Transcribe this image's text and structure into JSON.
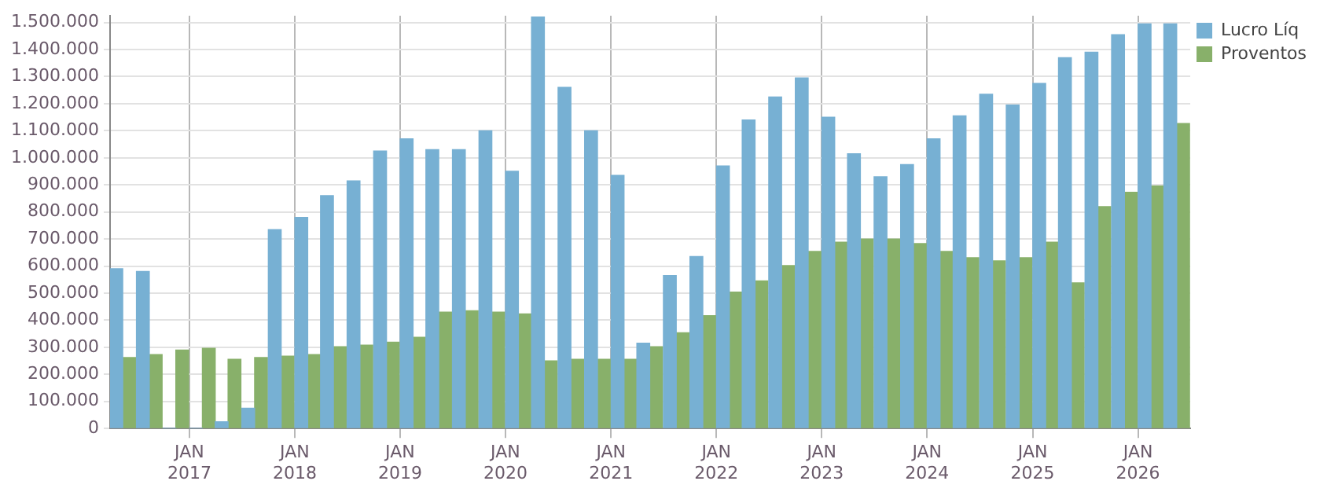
{
  "chart_data": {
    "type": "bar",
    "x": [
      "2016-05-15",
      "2016-08-15",
      "2016-11-15",
      "2017-02-15",
      "2017-05-15",
      "2017-08-15",
      "2017-11-15",
      "2018-02-15",
      "2018-05-15",
      "2018-08-15",
      "2018-11-15",
      "2019-02-15",
      "2019-05-15",
      "2019-08-15",
      "2019-11-15",
      "2020-02-15",
      "2020-05-15",
      "2020-08-15",
      "2020-11-15",
      "2021-02-15",
      "2021-05-15",
      "2021-08-15",
      "2021-11-15",
      "2022-02-15",
      "2022-05-15",
      "2022-08-15",
      "2022-11-15",
      "2023-02-15",
      "2023-05-15",
      "2023-08-15",
      "2023-11-15",
      "2024-02-15",
      "2024-05-15",
      "2024-08-15",
      "2024-11-15",
      "2025-02-15",
      "2025-05-15",
      "2025-08-15",
      "2025-11-15",
      "2026-02-15",
      "2026-05-15"
    ],
    "series": [
      {
        "name": "Lucro Líq",
        "color": "#77b0d3",
        "values": [
          590000,
          580000,
          0,
          0,
          25000,
          75000,
          735000,
          780000,
          860000,
          915000,
          1025000,
          1070000,
          1030000,
          1030000,
          1100000,
          950000,
          1520000,
          1260000,
          1100000,
          935000,
          315000,
          565000,
          635000,
          970000,
          1140000,
          1225000,
          1295000,
          1150000,
          1015000,
          930000,
          975000,
          1070000,
          1155000,
          1235000,
          1195000,
          1275000,
          1370000,
          1390000,
          1455000,
          1495000,
          1495000
        ]
      },
      {
        "name": "Proventos",
        "color": "#88b06a",
        "values": [
          262000,
          273000,
          290000,
          296000,
          256000,
          262000,
          267000,
          273000,
          302000,
          308000,
          319000,
          337000,
          430000,
          435000,
          430000,
          423000,
          250000,
          256000,
          256000,
          256000,
          302000,
          354000,
          417000,
          504000,
          545000,
          602000,
          654000,
          688000,
          700000,
          700000,
          683000,
          654000,
          631000,
          619000,
          631000,
          688000,
          538000,
          820000,
          873000,
          896000,
          1127000
        ]
      }
    ],
    "xlim": [
      "2016-04-01",
      "2026-07-01"
    ],
    "xticks": [
      {
        "value": "2017-01-01",
        "label": "JAN\n2017"
      },
      {
        "value": "2018-01-01",
        "label": "JAN\n2018"
      },
      {
        "value": "2019-01-01",
        "label": "JAN\n2019"
      },
      {
        "value": "2020-01-01",
        "label": "JAN\n2020"
      },
      {
        "value": "2021-01-01",
        "label": "JAN\n2021"
      },
      {
        "value": "2022-01-01",
        "label": "JAN\n2022"
      },
      {
        "value": "2023-01-01",
        "label": "JAN\n2023"
      },
      {
        "value": "2024-01-01",
        "label": "JAN\n2024"
      },
      {
        "value": "2025-01-01",
        "label": "JAN\n2025"
      },
      {
        "value": "2026-01-01",
        "label": "JAN\n2026"
      }
    ],
    "ylim": [
      0,
      1525000
    ],
    "yticks": [
      {
        "value": 0,
        "label": "0"
      },
      {
        "value": 100000,
        "label": "100.000"
      },
      {
        "value": 200000,
        "label": "200.000"
      },
      {
        "value": 300000,
        "label": "300.000"
      },
      {
        "value": 400000,
        "label": "400.000"
      },
      {
        "value": 500000,
        "label": "500.000"
      },
      {
        "value": 600000,
        "label": "600.000"
      },
      {
        "value": 700000,
        "label": "700.000"
      },
      {
        "value": 800000,
        "label": "800.000"
      },
      {
        "value": 900000,
        "label": "900.000"
      },
      {
        "value": 1000000,
        "label": "1.000.000"
      },
      {
        "value": 1100000,
        "label": "1.100.000"
      },
      {
        "value": 1200000,
        "label": "1.200.000"
      },
      {
        "value": 1300000,
        "label": "1.300.000"
      },
      {
        "value": 1400000,
        "label": "1.400.000"
      },
      {
        "value": 1500000,
        "label": "1.500.000"
      }
    ],
    "grid": true,
    "legend": "top right"
  }
}
